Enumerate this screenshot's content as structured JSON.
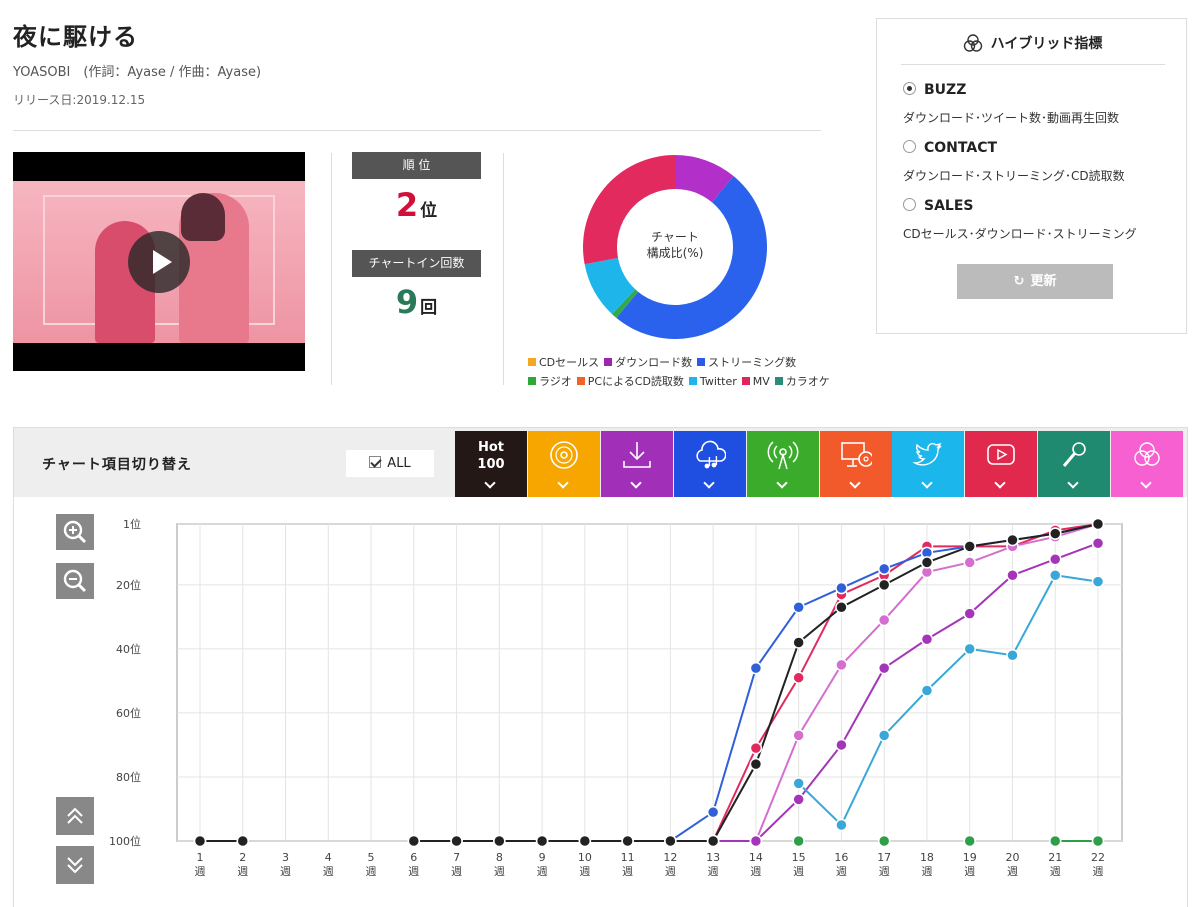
{
  "song": {
    "title": "夜に駆ける",
    "artist_line": "YOASOBI　(作詞：Ayase / 作曲：Ayase)",
    "release": "リリース日:2019.12.15"
  },
  "stats": {
    "rank_label": "順 位",
    "rank_value": "2",
    "rank_unit": "位",
    "count_label": "チャートイン回数",
    "count_value": "9",
    "count_unit": "回"
  },
  "donut": {
    "center_line1": "チャート",
    "center_line2": "構成比(%)",
    "legend_row1": [
      {
        "label": "CDセールス",
        "color": "#f5a623"
      },
      {
        "label": "ダウンロード数",
        "color": "#9b27b0"
      },
      {
        "label": "ストリーミング数",
        "color": "#2b59e8"
      }
    ],
    "legend_row2": [
      {
        "label": "ラジオ",
        "color": "#2ea836"
      },
      {
        "label": "PCによるCD読取数",
        "color": "#f2622b"
      },
      {
        "label": "Twitter",
        "color": "#1eb6ea"
      },
      {
        "label": "MV",
        "color": "#e0245e"
      },
      {
        "label": "カラオケ",
        "color": "#2b8c7c"
      }
    ]
  },
  "hybrid": {
    "title": "ハイブリッド指標",
    "options": [
      {
        "name": "BUZZ",
        "desc": "ダウンロード･ツイート数･動画再生回数",
        "checked": true
      },
      {
        "name": "CONTACT",
        "desc": "ダウンロード･ストリーミング･CD読取数",
        "checked": false
      },
      {
        "name": "SALES",
        "desc": "CDセールス･ダウンロード･ストリーミング",
        "checked": false
      }
    ],
    "update_label": "更新"
  },
  "chart_switch": {
    "label": "チャート項目切り替え",
    "all_label": "ALL",
    "hot_line1": "Hot",
    "hot_line2": "100",
    "tabs": [
      {
        "name": "hot100",
        "color": "#231815",
        "icon": "hot100"
      },
      {
        "name": "cd-sales",
        "color": "#f7a600",
        "icon": "cd-icon"
      },
      {
        "name": "download",
        "color": "#a12fb8",
        "icon": "download-icon"
      },
      {
        "name": "streaming",
        "color": "#1f4fe0",
        "icon": "cloud-music-icon"
      },
      {
        "name": "radio",
        "color": "#3aab2a",
        "icon": "radio-icon"
      },
      {
        "name": "pc-cd-read",
        "color": "#f25a2c",
        "icon": "pc-cd-icon"
      },
      {
        "name": "twitter",
        "color": "#1ab6ec",
        "icon": "twitter-icon"
      },
      {
        "name": "mv",
        "color": "#e0294d",
        "icon": "youtube-icon"
      },
      {
        "name": "karaoke",
        "color": "#1f8a6f",
        "icon": "microphone-icon"
      },
      {
        "name": "hybrid",
        "color": "#f760d0",
        "icon": "hybrid-icon"
      }
    ]
  },
  "chart_data": [
    {
      "type": "pie",
      "title": "チャート構成比(%)",
      "labels": [
        "CDセールス",
        "ダウンロード数",
        "ストリーミング数",
        "ラジオ",
        "PCによるCD読取数",
        "Twitter",
        "MV",
        "カラオケ"
      ],
      "values": [
        0,
        11,
        50,
        1,
        0,
        10,
        28,
        0
      ],
      "colors": [
        "#f5a623",
        "#b22fc9",
        "#2a62ee",
        "#35a84a",
        "#f2622b",
        "#1eb6ea",
        "#e32a5f",
        "#2b8c7c"
      ]
    },
    {
      "type": "line",
      "x": [
        "1",
        "2",
        "3",
        "4",
        "5",
        "6",
        "7",
        "8",
        "9",
        "10",
        "11",
        "12",
        "13",
        "14",
        "15",
        "16",
        "17",
        "18",
        "19",
        "20",
        "21",
        "22"
      ],
      "x_unit": "週",
      "y_ticks": [
        "1位",
        "20位",
        "40位",
        "60位",
        "80位",
        "100位"
      ],
      "y_tick_values": [
        1,
        20,
        40,
        60,
        80,
        100
      ],
      "ylim": [
        100,
        1
      ],
      "grid": true,
      "series": [
        {
          "color": "#e32a5f",
          "values": [
            null,
            null,
            null,
            null,
            null,
            null,
            null,
            null,
            null,
            null,
            null,
            null,
            100,
            71,
            49,
            23,
            17,
            8,
            8,
            8,
            3,
            1
          ]
        },
        {
          "color": "#d46fcf",
          "values": [
            null,
            null,
            null,
            null,
            null,
            null,
            null,
            null,
            null,
            null,
            null,
            null,
            100,
            100,
            67,
            45,
            31,
            16,
            13,
            8,
            5,
            1
          ]
        },
        {
          "color": "#a535b8",
          "values": [
            null,
            null,
            null,
            null,
            null,
            null,
            null,
            null,
            null,
            null,
            null,
            null,
            100,
            100,
            87,
            70,
            46,
            37,
            29,
            17,
            12,
            7
          ]
        },
        {
          "color": "#39a8d6",
          "values": [
            null,
            null,
            null,
            null,
            null,
            null,
            null,
            null,
            null,
            null,
            null,
            null,
            null,
            null,
            82,
            95,
            67,
            53,
            40,
            42,
            17,
            19
          ]
        },
        {
          "color": "#2e9e48",
          "values": [
            null,
            null,
            null,
            null,
            null,
            null,
            null,
            null,
            null,
            null,
            null,
            null,
            null,
            null,
            100,
            null,
            100,
            null,
            100,
            null,
            100,
            100
          ]
        },
        {
          "color": "#2f5fd9",
          "values": [
            100,
            100,
            null,
            null,
            null,
            100,
            100,
            100,
            100,
            100,
            100,
            100,
            91,
            46,
            27,
            21,
            15,
            10,
            8,
            6,
            4,
            1
          ]
        },
        {
          "color": "#222222",
          "values": [
            100,
            100,
            null,
            null,
            null,
            100,
            100,
            100,
            100,
            100,
            100,
            100,
            100,
            76,
            38,
            27,
            20,
            13,
            8,
            6,
            4,
            1
          ]
        }
      ]
    }
  ]
}
